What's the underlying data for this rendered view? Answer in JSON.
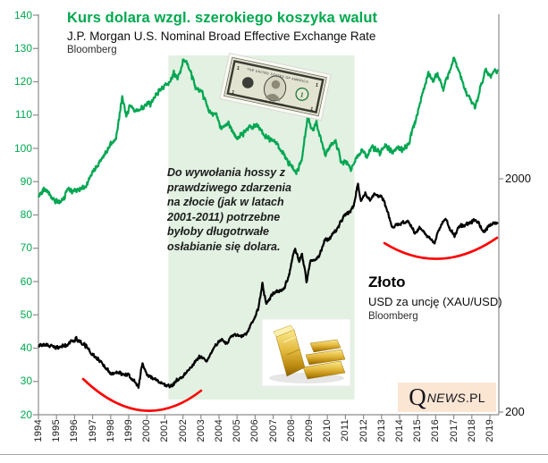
{
  "header": {
    "title": "Kurs dolara wzgl. szerokiego koszyka walut",
    "subtitle": "J.P. Morgan U.S. Nominal Broad Effective Exchange Rate",
    "source": "Bloomberg"
  },
  "annotation": {
    "text": "Do wywołania hossy z prawdziwego zdarzenia na złocie (jak w latach 2001-2011) potrzebne byłoby długotrwałe osłabianie się dolara."
  },
  "gold_label": {
    "title": "Złoto",
    "subtitle": "USD za uncję (XAU/USD)",
    "source": "Bloomberg"
  },
  "logo": {
    "q": "Q",
    "news": "NEWS",
    "pl": ".PL"
  },
  "colors": {
    "usd_line": "#00A651",
    "title_green": "#00A94E",
    "gold_line": "#000000",
    "highlight_region": "#e2f1e2",
    "red_curve": "#FF0000",
    "logo_bg": "#fbe6d4",
    "axis": "#8c8c8c"
  },
  "chart_data": {
    "type": "line",
    "title": "Kurs dolara wzgl. szerokiego koszyka walut",
    "xlabel": "",
    "ylabel": "",
    "left_axis": {
      "min": 20,
      "max": 140,
      "tick_step": 10,
      "labels": [
        "140",
        "130",
        "120",
        "110",
        "100",
        "90",
        "80",
        "70",
        "60",
        "50",
        "40",
        "30",
        "20"
      ]
    },
    "right_axis": {
      "scale": "log",
      "labels": [
        "2000",
        "200"
      ]
    },
    "x_axis": {
      "start": 1994,
      "end": 2019,
      "labels": [
        "1994",
        "1995",
        "1996",
        "1997",
        "1998",
        "1999",
        "2000",
        "2001",
        "2002",
        "2003",
        "2004",
        "2005",
        "2006",
        "2007",
        "2008",
        "2009",
        "2010",
        "2011",
        "2012",
        "2013",
        "2014",
        "2015",
        "2016",
        "2017",
        "2018",
        "2019"
      ]
    },
    "highlight_region": {
      "year_start": 2001.2,
      "year_end": 2011.5
    },
    "red_curves": [
      {
        "side": "left",
        "meaning": "bottoming curve under gold 1996-2003",
        "years": [
          1996.5,
          2003.0
        ]
      },
      {
        "side": "right",
        "meaning": "bottoming curve under gold 2013-2019",
        "years": [
          2013.2,
          2019.4
        ]
      }
    ],
    "series": [
      {
        "name": "USD broad effective exchange rate",
        "axis": "left",
        "color": "#00A651",
        "anchors": [
          [
            1994.0,
            86
          ],
          [
            1994.4,
            87.5
          ],
          [
            1994.8,
            85
          ],
          [
            1995.1,
            83.5
          ],
          [
            1995.45,
            85.5
          ],
          [
            1995.6,
            88
          ],
          [
            1995.85,
            86.5
          ],
          [
            1996.2,
            87.5
          ],
          [
            1996.6,
            88.5
          ],
          [
            1997.0,
            92.5
          ],
          [
            1997.5,
            96.5
          ],
          [
            1998.0,
            101
          ],
          [
            1998.3,
            103
          ],
          [
            1998.65,
            116
          ],
          [
            1998.85,
            109.5
          ],
          [
            1999.1,
            113
          ],
          [
            1999.4,
            111
          ],
          [
            1999.8,
            112.5
          ],
          [
            2000.2,
            113.5
          ],
          [
            2000.6,
            116.5
          ],
          [
            2000.9,
            118.5
          ],
          [
            2001.2,
            119.5
          ],
          [
            2001.5,
            122.5
          ],
          [
            2001.7,
            120.5
          ],
          [
            2002.05,
            127
          ],
          [
            2002.35,
            124
          ],
          [
            2002.7,
            118.5
          ],
          [
            2003.1,
            116.5
          ],
          [
            2003.4,
            111.5
          ],
          [
            2003.85,
            110
          ],
          [
            2004.1,
            106
          ],
          [
            2004.5,
            108
          ],
          [
            2005.0,
            102.5
          ],
          [
            2005.6,
            106
          ],
          [
            2006.1,
            107
          ],
          [
            2006.6,
            103.5
          ],
          [
            2007.1,
            102
          ],
          [
            2007.5,
            99
          ],
          [
            2007.9,
            95
          ],
          [
            2008.3,
            92.5
          ],
          [
            2008.6,
            97
          ],
          [
            2008.9,
            109.5
          ],
          [
            2009.15,
            105
          ],
          [
            2009.4,
            107.5
          ],
          [
            2009.9,
            98
          ],
          [
            2010.1,
            100.5
          ],
          [
            2010.45,
            102
          ],
          [
            2010.8,
            95.5
          ],
          [
            2011.0,
            96.5
          ],
          [
            2011.3,
            93.5
          ],
          [
            2011.6,
            97
          ],
          [
            2011.9,
            99.5
          ],
          [
            2012.2,
            97.5
          ],
          [
            2012.5,
            100.5
          ],
          [
            2012.9,
            98.5
          ],
          [
            2013.2,
            100.5
          ],
          [
            2013.6,
            99
          ],
          [
            2013.9,
            100
          ],
          [
            2014.2,
            99.5
          ],
          [
            2014.5,
            101.5
          ],
          [
            2014.8,
            107
          ],
          [
            2015.05,
            112
          ],
          [
            2015.3,
            117
          ],
          [
            2015.6,
            122.5
          ],
          [
            2015.85,
            120
          ],
          [
            2016.1,
            122.5
          ],
          [
            2016.4,
            117.5
          ],
          [
            2016.7,
            122
          ],
          [
            2017.0,
            127
          ],
          [
            2017.3,
            123.5
          ],
          [
            2017.6,
            118
          ],
          [
            2017.9,
            114.5
          ],
          [
            2018.2,
            112.5
          ],
          [
            2018.5,
            119
          ],
          [
            2018.8,
            124
          ],
          [
            2019.0,
            121.5
          ],
          [
            2019.2,
            123
          ],
          [
            2019.45,
            123.5
          ]
        ]
      },
      {
        "name": "Gold XAU/USD",
        "axis": "right",
        "color": "#000000",
        "anchors": [
          [
            1994.0,
            385
          ],
          [
            1994.5,
            388
          ],
          [
            1995.0,
            378
          ],
          [
            1995.5,
            387
          ],
          [
            1996.1,
            412
          ],
          [
            1996.6,
            385
          ],
          [
            1997.0,
            352
          ],
          [
            1997.5,
            325
          ],
          [
            1998.0,
            292
          ],
          [
            1998.5,
            295
          ],
          [
            1999.0,
            288
          ],
          [
            1999.55,
            256
          ],
          [
            1999.75,
            322
          ],
          [
            2000.0,
            288
          ],
          [
            2000.4,
            278
          ],
          [
            2000.7,
            268
          ],
          [
            2001.1,
            260
          ],
          [
            2001.3,
            255
          ],
          [
            2001.7,
            275
          ],
          [
            2002.0,
            282
          ],
          [
            2002.5,
            315
          ],
          [
            2003.0,
            348
          ],
          [
            2003.3,
            330
          ],
          [
            2003.8,
            385
          ],
          [
            2004.1,
            410
          ],
          [
            2004.4,
            392
          ],
          [
            2004.8,
            430
          ],
          [
            2005.1,
            422
          ],
          [
            2005.5,
            432
          ],
          [
            2005.9,
            495
          ],
          [
            2006.2,
            560
          ],
          [
            2006.4,
            715
          ],
          [
            2006.6,
            580
          ],
          [
            2006.9,
            630
          ],
          [
            2007.2,
            660
          ],
          [
            2007.6,
            670
          ],
          [
            2007.9,
            790
          ],
          [
            2008.2,
            1000
          ],
          [
            2008.45,
            890
          ],
          [
            2008.6,
            950
          ],
          [
            2008.85,
            720
          ],
          [
            2009.05,
            880
          ],
          [
            2009.3,
            900
          ],
          [
            2009.55,
            935
          ],
          [
            2009.85,
            1090
          ],
          [
            2010.1,
            1100
          ],
          [
            2010.35,
            1170
          ],
          [
            2010.6,
            1230
          ],
          [
            2010.9,
            1390
          ],
          [
            2011.2,
            1430
          ],
          [
            2011.45,
            1520
          ],
          [
            2011.7,
            1890
          ],
          [
            2011.85,
            1620
          ],
          [
            2012.1,
            1730
          ],
          [
            2012.35,
            1620
          ],
          [
            2012.6,
            1720
          ],
          [
            2012.9,
            1690
          ],
          [
            2013.1,
            1630
          ],
          [
            2013.35,
            1420
          ],
          [
            2013.6,
            1230
          ],
          [
            2013.9,
            1280
          ],
          [
            2014.2,
            1300
          ],
          [
            2014.5,
            1310
          ],
          [
            2014.8,
            1180
          ],
          [
            2015.1,
            1220
          ],
          [
            2015.4,
            1170
          ],
          [
            2015.7,
            1100
          ],
          [
            2015.95,
            1065
          ],
          [
            2016.2,
            1230
          ],
          [
            2016.55,
            1350
          ],
          [
            2016.8,
            1210
          ],
          [
            2017.05,
            1140
          ],
          [
            2017.3,
            1250
          ],
          [
            2017.6,
            1270
          ],
          [
            2017.9,
            1300
          ],
          [
            2018.1,
            1330
          ],
          [
            2018.35,
            1300
          ],
          [
            2018.65,
            1185
          ],
          [
            2018.9,
            1240
          ],
          [
            2019.1,
            1290
          ],
          [
            2019.45,
            1295
          ]
        ]
      }
    ]
  }
}
